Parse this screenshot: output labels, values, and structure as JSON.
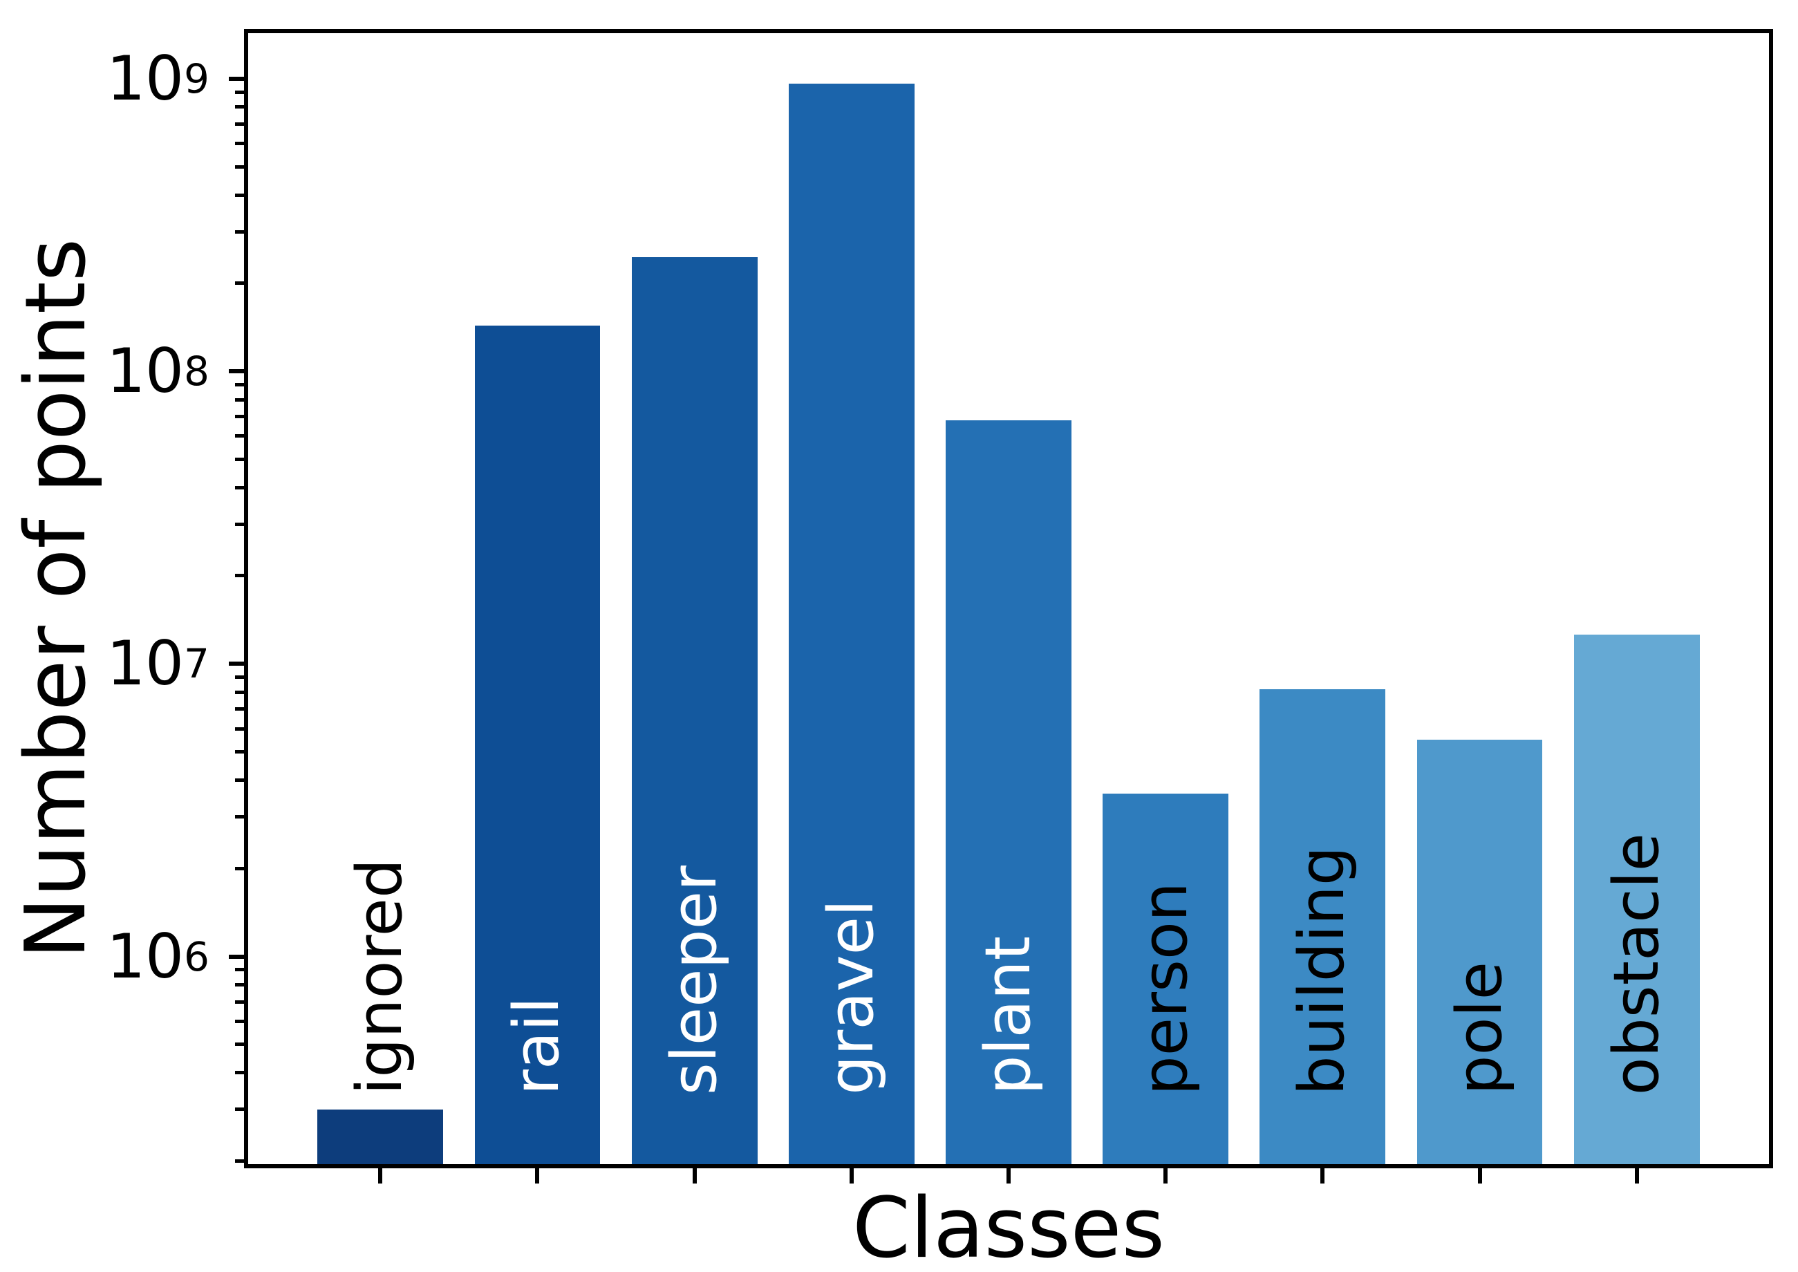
{
  "chart_data": {
    "type": "bar",
    "title": "",
    "xlabel": "Classes",
    "ylabel": "Number of points",
    "yscale": "log",
    "grid": false,
    "legend": null,
    "ylim": [
      195000,
      1430000000
    ],
    "xlim": [
      -0.842,
      8.842
    ],
    "bar_width": 0.8,
    "y_tick_exponents": [
      6,
      7,
      8,
      9
    ],
    "categories": [
      "ignored",
      "rail",
      "sleeper",
      "gravel",
      "plant",
      "person",
      "building",
      "pole",
      "obstacle"
    ],
    "values": [
      300000,
      143000000,
      245000000,
      960000000,
      68000000,
      3600000,
      8200000,
      5500000,
      12600000
    ],
    "bar_colors": [
      "#0d3d7c",
      "#0e4e95",
      "#14599f",
      "#1b64ab",
      "#2470b4",
      "#2e7cbc",
      "#3c8ac4",
      "#4f99cc",
      "#65a9d4"
    ],
    "label_colors": [
      "#000000",
      "#ffffff",
      "#ffffff",
      "#ffffff",
      "#ffffff",
      "#000000",
      "#000000",
      "#000000",
      "#000000"
    ]
  }
}
